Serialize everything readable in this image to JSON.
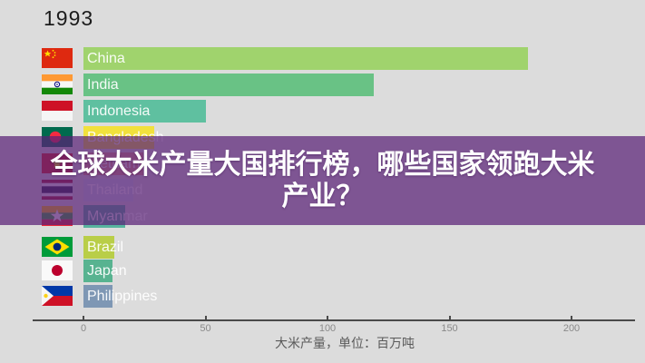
{
  "year_label": "1993",
  "overlay": {
    "title_line1": "全球大米产量大国排行榜，哪些国家领跑大米",
    "title_line2": "产业？",
    "background_rgba": "rgba(90,33,119,0.72)",
    "text_color": "#ffffff"
  },
  "axis": {
    "tick_labels": [
      "0",
      "50",
      "100",
      "150",
      "200"
    ]
  },
  "chart_data": {
    "type": "bar",
    "orientation": "horizontal",
    "year": "1993",
    "xlabel": "大米产量，单位：百万吨",
    "xlim": [
      0,
      228
    ],
    "xticks": [
      0,
      50,
      100,
      150,
      200
    ],
    "grid": false,
    "legend": false,
    "categories": [
      "China",
      "India",
      "Indonesia",
      "Bangladesh",
      "Vietnam",
      "Thailand",
      "Myanmar",
      "Brazil",
      "Japan",
      "Philippines"
    ],
    "values": [
      182,
      119,
      50,
      29,
      24.5,
      20.5,
      17,
      12.5,
      12,
      12
    ],
    "bar_colors": [
      "#a0d36d",
      "#69c285",
      "#5fc0a0",
      "#f1e13c",
      "#e09a8a",
      "#ccd6ea",
      "#57b49e",
      "#b9ce48",
      "#58b390",
      "#7e97b4"
    ],
    "flag_icons": [
      "china-flag-icon",
      "india-flag-icon",
      "indonesia-flag-icon",
      "bangladesh-flag-icon",
      "vietnam-flag-icon",
      "thailand-flag-icon",
      "myanmar-flag-icon",
      "brazil-flag-icon",
      "japan-flag-icon",
      "philippines-flag-icon"
    ]
  }
}
